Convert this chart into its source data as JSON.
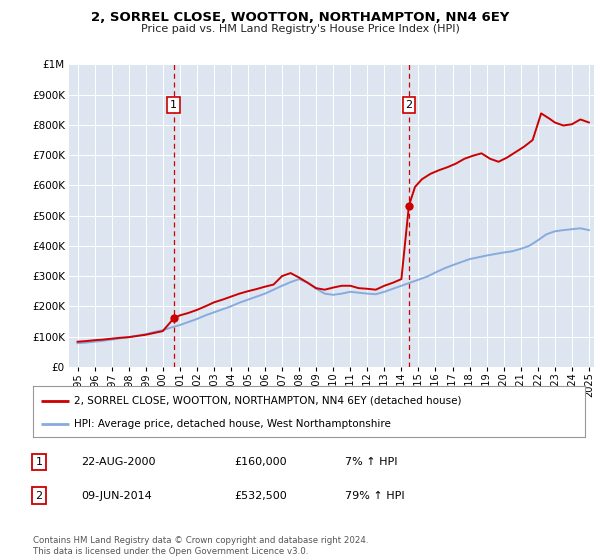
{
  "title": "2, SORREL CLOSE, WOOTTON, NORTHAMPTON, NN4 6EY",
  "subtitle": "Price paid vs. HM Land Registry's House Price Index (HPI)",
  "sale1_date": "22-AUG-2000",
  "sale1_price": 160000,
  "sale1_hpi_pct": "7%",
  "sale2_date": "09-JUN-2014",
  "sale2_price": 532500,
  "sale2_hpi_pct": "79%",
  "legend_line1": "2, SORREL CLOSE, WOOTTON, NORTHAMPTON, NN4 6EY (detached house)",
  "legend_line2": "HPI: Average price, detached house, West Northamptonshire",
  "footer": "Contains HM Land Registry data © Crown copyright and database right 2024.\nThis data is licensed under the Open Government Licence v3.0.",
  "line_color_property": "#cc0000",
  "line_color_hpi": "#88aadd",
  "marker_color": "#cc0000",
  "vline_color": "#cc0000",
  "bg_color": "#dde6f0",
  "grid_color": "#ffffff",
  "ylim": [
    0,
    1000000
  ],
  "xlim_start": 1994.5,
  "xlim_end": 2025.3,
  "sale1_x": 2000.64,
  "sale2_x": 2014.44,
  "property_hpi_x": [
    1995.0,
    1995.5,
    1996.0,
    1996.5,
    1997.0,
    1997.5,
    1998.0,
    1998.5,
    1999.0,
    1999.5,
    2000.0,
    2000.64,
    2001.0,
    2001.5,
    2002.0,
    2002.5,
    2003.0,
    2003.5,
    2004.0,
    2004.5,
    2005.0,
    2005.5,
    2006.0,
    2006.5,
    2007.0,
    2007.5,
    2008.0,
    2008.5,
    2009.0,
    2009.5,
    2010.0,
    2010.5,
    2011.0,
    2011.5,
    2012.0,
    2012.5,
    2013.0,
    2013.5,
    2014.0,
    2014.44,
    2014.8,
    2015.2,
    2015.7,
    2016.2,
    2016.7,
    2017.2,
    2017.7,
    2018.2,
    2018.7,
    2019.2,
    2019.7,
    2020.2,
    2020.7,
    2021.2,
    2021.7,
    2022.2,
    2022.7,
    2023.0,
    2023.5,
    2024.0,
    2024.5,
    2025.0
  ],
  "property_hpi_y": [
    83000,
    85000,
    88000,
    90000,
    93000,
    96000,
    98000,
    102000,
    106000,
    112000,
    118000,
    160000,
    170000,
    178000,
    188000,
    200000,
    213000,
    222000,
    232000,
    242000,
    250000,
    257000,
    265000,
    272000,
    300000,
    310000,
    295000,
    278000,
    260000,
    255000,
    262000,
    268000,
    268000,
    260000,
    258000,
    255000,
    268000,
    278000,
    290000,
    532500,
    595000,
    620000,
    638000,
    650000,
    660000,
    672000,
    688000,
    698000,
    706000,
    688000,
    678000,
    692000,
    710000,
    728000,
    750000,
    838000,
    820000,
    808000,
    798000,
    802000,
    818000,
    808000
  ],
  "hpi_x": [
    1995.0,
    1995.5,
    1996.0,
    1996.5,
    1997.0,
    1997.5,
    1998.0,
    1998.5,
    1999.0,
    1999.5,
    2000.0,
    2000.5,
    2001.0,
    2001.5,
    2002.0,
    2002.5,
    2003.0,
    2003.5,
    2004.0,
    2004.5,
    2005.0,
    2005.5,
    2006.0,
    2006.5,
    2007.0,
    2007.5,
    2008.0,
    2008.5,
    2009.0,
    2009.5,
    2010.0,
    2010.5,
    2011.0,
    2011.5,
    2012.0,
    2012.5,
    2013.0,
    2013.5,
    2014.0,
    2014.5,
    2015.0,
    2015.5,
    2016.0,
    2016.5,
    2017.0,
    2017.5,
    2018.0,
    2018.5,
    2019.0,
    2019.5,
    2020.0,
    2020.5,
    2021.0,
    2021.5,
    2022.0,
    2022.5,
    2023.0,
    2023.5,
    2024.0,
    2024.5,
    2025.0
  ],
  "hpi_y": [
    78000,
    80000,
    83000,
    86000,
    90000,
    94000,
    98000,
    103000,
    108000,
    115000,
    121000,
    130000,
    138000,
    148000,
    158000,
    170000,
    180000,
    190000,
    200000,
    212000,
    222000,
    232000,
    242000,
    255000,
    268000,
    280000,
    290000,
    278000,
    258000,
    242000,
    238000,
    242000,
    248000,
    245000,
    242000,
    240000,
    248000,
    258000,
    268000,
    278000,
    288000,
    298000,
    312000,
    325000,
    336000,
    346000,
    356000,
    362000,
    368000,
    373000,
    378000,
    382000,
    390000,
    400000,
    418000,
    438000,
    448000,
    452000,
    455000,
    458000,
    452000
  ]
}
